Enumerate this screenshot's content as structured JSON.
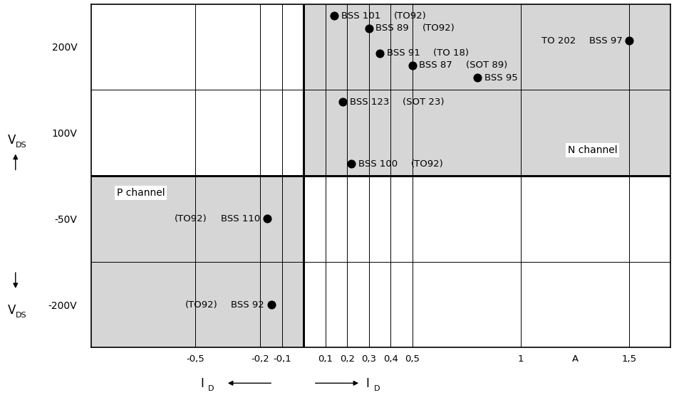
{
  "chart_data": {
    "type": "scatter",
    "xlabel": "I",
    "xlabel_sub": "D",
    "ylabel": "V",
    "ylabel_sub": "DS",
    "x_unit": "A",
    "categories": [
      "200V",
      "100V",
      "-50V",
      "-200V"
    ],
    "xlim": [
      -0.98,
      1.69
    ],
    "xticks": [
      {
        "value": -0.5,
        "label": "-0,5"
      },
      {
        "value": -0.2,
        "label": "-0,2"
      },
      {
        "value": -0.1,
        "label": "-0,1"
      },
      {
        "value": 0.1,
        "label": "0,1"
      },
      {
        "value": 0.2,
        "label": "0,2"
      },
      {
        "value": 0.3,
        "label": "0,3"
      },
      {
        "value": 0.4,
        "label": "0,4"
      },
      {
        "value": 0.5,
        "label": "0,5"
      },
      1,
      {
        "value": 1.5,
        "label": "1,5"
      }
    ],
    "grid": true,
    "color": "#000000",
    "marker": "o",
    "channels": [
      {
        "name": "N channel",
        "xrange": [
          0,
          1.69
        ],
        "v_ds": [
          "200V",
          "100V"
        ],
        "color": "#d6d6d6"
      },
      {
        "name": "P channel",
        "xrange": [
          -0.98,
          0
        ],
        "v_ds": [
          "-50V",
          "-200V"
        ],
        "color": "#d6d6d6"
      }
    ],
    "devices": [
      {
        "name": "BSS 101",
        "x": 0.14,
        "v_ds": "200V",
        "package": "(TO92)"
      },
      {
        "name": "BSS 89",
        "x": 0.3,
        "v_ds": "200V",
        "package": "(TO92)"
      },
      {
        "name": "BSS 97",
        "x": 1.5,
        "v_ds": "200V",
        "package": "TO 202"
      },
      {
        "name": "BSS 91",
        "x": 0.35,
        "v_ds": "200V",
        "package": "(TO 18)"
      },
      {
        "name": "BSS 87",
        "x": 0.5,
        "v_ds": "200V",
        "package": "(SOT 89)"
      },
      {
        "name": "BSS 95",
        "x": 0.8,
        "v_ds": "200V",
        "package": null
      },
      {
        "name": "BSS 123",
        "x": 0.18,
        "v_ds": "100V",
        "package": "(SOT 23)"
      },
      {
        "name": "BSS 100",
        "x": 0.22,
        "v_ds": "100V",
        "package": "(TO92)"
      },
      {
        "name": "BSS 110",
        "x": -0.17,
        "v_ds": "-50V",
        "package": "(TO92)"
      },
      {
        "name": "BSS 92",
        "x": -0.15,
        "v_ds": "-200V",
        "package": "(TO92)"
      }
    ]
  }
}
